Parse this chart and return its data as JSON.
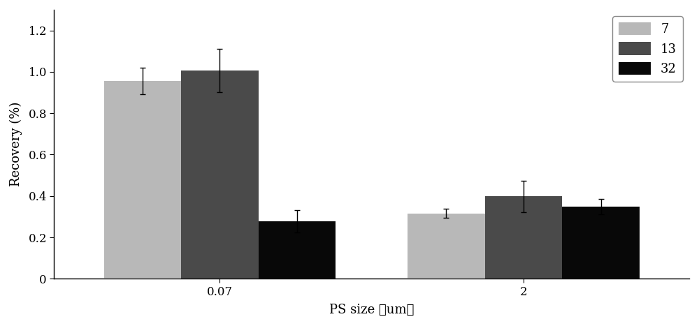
{
  "categories": [
    "0.07",
    "2"
  ],
  "series": [
    {
      "label": "7",
      "color": "#b8b8b8",
      "values": [
        0.955,
        0.315
      ],
      "errors": [
        0.065,
        0.022
      ]
    },
    {
      "label": "13",
      "color": "#4a4a4a",
      "values": [
        1.005,
        0.398
      ],
      "errors": [
        0.105,
        0.075
      ]
    },
    {
      "label": "32",
      "color": "#080808",
      "values": [
        0.278,
        0.348
      ],
      "errors": [
        0.055,
        0.038
      ]
    }
  ],
  "xlabel": "PS size （um）",
  "ylabel": "Recovery (%)",
  "ylim": [
    0,
    1.3
  ],
  "yticks": [
    0,
    0.2,
    0.4,
    0.6,
    0.8,
    1.0,
    1.2
  ],
  "bar_width": 0.14,
  "group_positions": [
    0.3,
    0.85
  ],
  "xlim": [
    0.0,
    1.15
  ],
  "background_color": "#ffffff",
  "legend_fontsize": 13,
  "axis_fontsize": 13,
  "tick_fontsize": 12,
  "capsize": 3
}
